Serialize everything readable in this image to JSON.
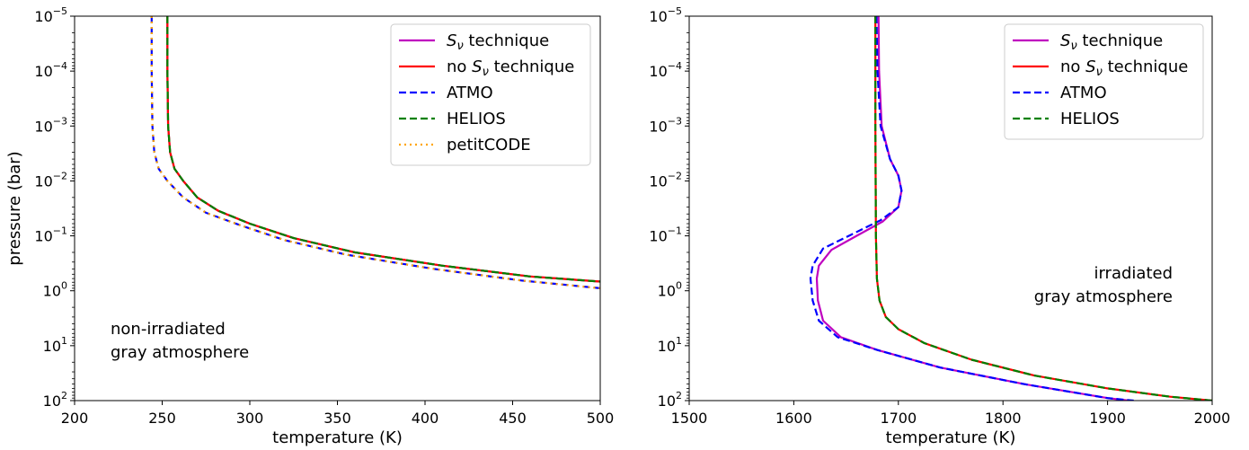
{
  "chart_data": [
    {
      "type": "line",
      "xlabel": "temperature (K)",
      "ylabel": "pressure (bar)",
      "xlim": [
        200,
        500
      ],
      "ylim": [
        100,
        1e-05
      ],
      "yscale": "log",
      "y_inverted": true,
      "grid": false,
      "legend_position": "top-right",
      "x_ticks": [
        "200",
        "250",
        "300",
        "350",
        "400",
        "450",
        "500"
      ],
      "y_ticks": [
        {
          "base": "10",
          "exp": "−5"
        },
        {
          "base": "10",
          "exp": "−4"
        },
        {
          "base": "10",
          "exp": "−3"
        },
        {
          "base": "10",
          "exp": "−2"
        },
        {
          "base": "10",
          "exp": "−1"
        },
        {
          "base": "10",
          "exp": "0"
        },
        {
          "base": "10",
          "exp": "1"
        },
        {
          "base": "10",
          "exp": "2"
        }
      ],
      "annotation": [
        "non-irradiated",
        "gray atmosphere"
      ],
      "series": [
        {
          "label_prefix": "S",
          "label_sub": "ν",
          "label_suffix": " technique",
          "color": "#bf00bf",
          "style": "solid",
          "x": [
            253,
            253,
            253.4,
            254.5,
            257,
            262,
            270,
            282,
            300,
            325,
            360,
            410,
            460,
            500
          ],
          "y": [
            1e-05,
            0.0001,
            0.001,
            0.003,
            0.006,
            0.01,
            0.02,
            0.035,
            0.06,
            0.11,
            0.2,
            0.35,
            0.55,
            0.68
          ]
        },
        {
          "label_prefix": "no S",
          "label_sub": "ν",
          "label_suffix": " technique",
          "color": "#ff0000",
          "style": "solid",
          "x": [
            253,
            253,
            253.4,
            254.5,
            257,
            262,
            270,
            282,
            300,
            325,
            360,
            410,
            460,
            500
          ],
          "y": [
            1e-05,
            0.0001,
            0.001,
            0.003,
            0.006,
            0.01,
            0.02,
            0.035,
            0.06,
            0.11,
            0.2,
            0.35,
            0.55,
            0.68
          ]
        },
        {
          "label_prefix": "ATMO",
          "label_sub": "",
          "label_suffix": "",
          "color": "#0000ff",
          "style": "dashed",
          "x": [
            244,
            244,
            244.4,
            245.5,
            248,
            253,
            262,
            275,
            295,
            320,
            355,
            405,
            455,
            500
          ],
          "y": [
            1e-05,
            0.0001,
            0.001,
            0.003,
            0.006,
            0.01,
            0.02,
            0.038,
            0.065,
            0.12,
            0.22,
            0.4,
            0.65,
            0.9
          ]
        },
        {
          "label_prefix": "HELIOS",
          "label_sub": "",
          "label_suffix": "",
          "color": "#008000",
          "style": "dashed",
          "x": [
            253,
            253,
            253.4,
            254.5,
            257,
            262,
            270,
            282,
            300,
            325,
            360,
            410,
            460,
            500
          ],
          "y": [
            1e-05,
            0.0001,
            0.001,
            0.003,
            0.006,
            0.01,
            0.02,
            0.035,
            0.06,
            0.11,
            0.2,
            0.35,
            0.55,
            0.68
          ]
        },
        {
          "label_prefix": "petitCODE",
          "label_sub": "",
          "label_suffix": "",
          "color": "#ffa500",
          "style": "dotted",
          "x": [
            244,
            244,
            244.4,
            245.5,
            248,
            253,
            262,
            275,
            295,
            320,
            355,
            405,
            455,
            500
          ],
          "y": [
            1e-05,
            0.0001,
            0.001,
            0.003,
            0.006,
            0.01,
            0.02,
            0.038,
            0.065,
            0.12,
            0.22,
            0.4,
            0.65,
            0.9
          ]
        }
      ]
    },
    {
      "type": "line",
      "xlabel": "temperature (K)",
      "ylabel": "",
      "xlim": [
        1500,
        2000
      ],
      "ylim": [
        100,
        1e-05
      ],
      "yscale": "log",
      "y_inverted": true,
      "grid": false,
      "legend_position": "top-right",
      "x_ticks": [
        "1500",
        "1600",
        "1700",
        "1800",
        "1900",
        "2000"
      ],
      "y_ticks": [
        {
          "base": "10",
          "exp": "−5"
        },
        {
          "base": "10",
          "exp": "−4"
        },
        {
          "base": "10",
          "exp": "−3"
        },
        {
          "base": "10",
          "exp": "−2"
        },
        {
          "base": "10",
          "exp": "−1"
        },
        {
          "base": "10",
          "exp": "0"
        },
        {
          "base": "10",
          "exp": "1"
        },
        {
          "base": "10",
          "exp": "2"
        }
      ],
      "annotation": [
        "irradiated",
        "gray atmosphere"
      ],
      "series": [
        {
          "label_prefix": "S",
          "label_sub": "ν",
          "label_suffix": " technique",
          "color": "#bf00bf",
          "style": "solid",
          "x": [
            1681,
            1681.5,
            1684,
            1692,
            1700,
            1703,
            1700,
            1685,
            1660,
            1636,
            1624,
            1622,
            1623,
            1628,
            1645,
            1680,
            1740,
            1820,
            1900,
            1920
          ],
          "y": [
            1e-05,
            0.0001,
            0.001,
            0.004,
            0.008,
            0.015,
            0.03,
            0.055,
            0.1,
            0.18,
            0.35,
            0.6,
            1.5,
            3.5,
            7,
            12,
            25,
            50,
            90,
            100
          ]
        },
        {
          "label_prefix": "no S",
          "label_sub": "ν",
          "label_suffix": " technique",
          "color": "#ff0000",
          "style": "solid",
          "x": [
            1678,
            1678,
            1678.5,
            1679.5,
            1682,
            1688,
            1700,
            1725,
            1770,
            1830,
            1900,
            1960,
            2000
          ],
          "y": [
            1e-05,
            0.001,
            0.1,
            0.6,
            1.5,
            3,
            5,
            9,
            18,
            35,
            60,
            85,
            100
          ]
        },
        {
          "label_prefix": "ATMO",
          "label_sub": "",
          "label_suffix": "",
          "color": "#0000ff",
          "style": "dashed",
          "x": [
            1679,
            1680,
            1683,
            1692,
            1700,
            1703,
            1700,
            1683,
            1655,
            1628,
            1618,
            1616,
            1618,
            1624,
            1642,
            1680,
            1740,
            1820,
            1900,
            1925
          ],
          "y": [
            1e-05,
            0.0001,
            0.001,
            0.004,
            0.008,
            0.015,
            0.03,
            0.052,
            0.095,
            0.17,
            0.35,
            0.6,
            1.5,
            3.5,
            7,
            12,
            25,
            50,
            90,
            100
          ]
        },
        {
          "label_prefix": "HELIOS",
          "label_sub": "",
          "label_suffix": "",
          "color": "#008000",
          "style": "dashed",
          "x": [
            1678,
            1678,
            1678.5,
            1679.5,
            1682,
            1688,
            1700,
            1725,
            1770,
            1830,
            1900,
            1960,
            2000
          ],
          "y": [
            1e-05,
            0.001,
            0.1,
            0.6,
            1.5,
            3,
            5,
            9,
            18,
            35,
            60,
            85,
            100
          ]
        }
      ]
    }
  ]
}
